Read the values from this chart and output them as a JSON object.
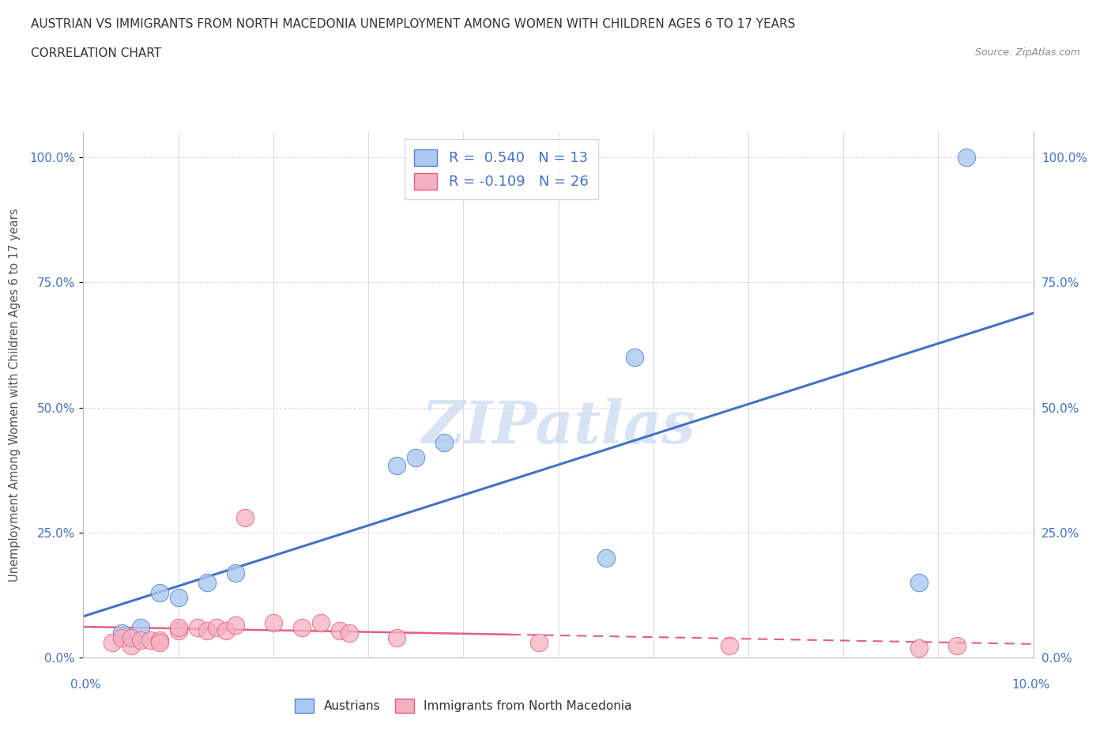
{
  "title_line1": "AUSTRIAN VS IMMIGRANTS FROM NORTH MACEDONIA UNEMPLOYMENT AMONG WOMEN WITH CHILDREN AGES 6 TO 17 YEARS",
  "title_line2": "CORRELATION CHART",
  "source_text": "Source: ZipAtlas.com",
  "ylabel": "Unemployment Among Women with Children Ages 6 to 17 years",
  "x_axis_label_left": "0.0%",
  "x_axis_label_right": "10.0%",
  "xlim": [
    0.0,
    0.1
  ],
  "ylim": [
    0.0,
    1.05
  ],
  "ytick_labels": [
    "0.0%",
    "25.0%",
    "50.0%",
    "75.0%",
    "100.0%"
  ],
  "ytick_values": [
    0.0,
    0.25,
    0.5,
    0.75,
    1.0
  ],
  "blue_R": "0.540",
  "blue_N": "13",
  "pink_R": "-0.109",
  "pink_N": "26",
  "blue_scatter_color": "#aac8f0",
  "pink_scatter_color": "#f5b0c0",
  "blue_edge_color": "#5585cc",
  "pink_edge_color": "#e06080",
  "blue_line_color": "#4472c4",
  "pink_line_color": "#e06080",
  "watermark_color": "#c8d8f0",
  "legend_label_blue": "Austrians",
  "legend_label_pink": "Immigrants from North Macedonia",
  "blue_x": [
    0.004,
    0.006,
    0.008,
    0.01,
    0.013,
    0.016,
    0.033,
    0.035,
    0.038,
    0.055,
    0.058,
    0.088,
    0.093
  ],
  "blue_y": [
    0.05,
    0.06,
    0.13,
    0.12,
    0.15,
    0.17,
    0.385,
    0.4,
    0.43,
    0.2,
    0.6,
    0.15,
    1.0
  ],
  "pink_x": [
    0.003,
    0.004,
    0.005,
    0.005,
    0.006,
    0.007,
    0.008,
    0.008,
    0.01,
    0.01,
    0.012,
    0.013,
    0.014,
    0.015,
    0.016,
    0.017,
    0.02,
    0.023,
    0.025,
    0.027,
    0.028,
    0.033,
    0.048,
    0.068,
    0.088,
    0.092
  ],
  "pink_y": [
    0.03,
    0.04,
    0.025,
    0.04,
    0.035,
    0.035,
    0.035,
    0.03,
    0.055,
    0.06,
    0.06,
    0.055,
    0.06,
    0.055,
    0.065,
    0.28,
    0.07,
    0.06,
    0.07,
    0.055,
    0.05,
    0.04,
    0.03,
    0.025,
    0.02,
    0.025
  ],
  "blue_line_start_x": 0.0,
  "blue_line_end_x": 0.1,
  "pink_line_start_x": 0.0,
  "pink_line_end_x": 0.1
}
